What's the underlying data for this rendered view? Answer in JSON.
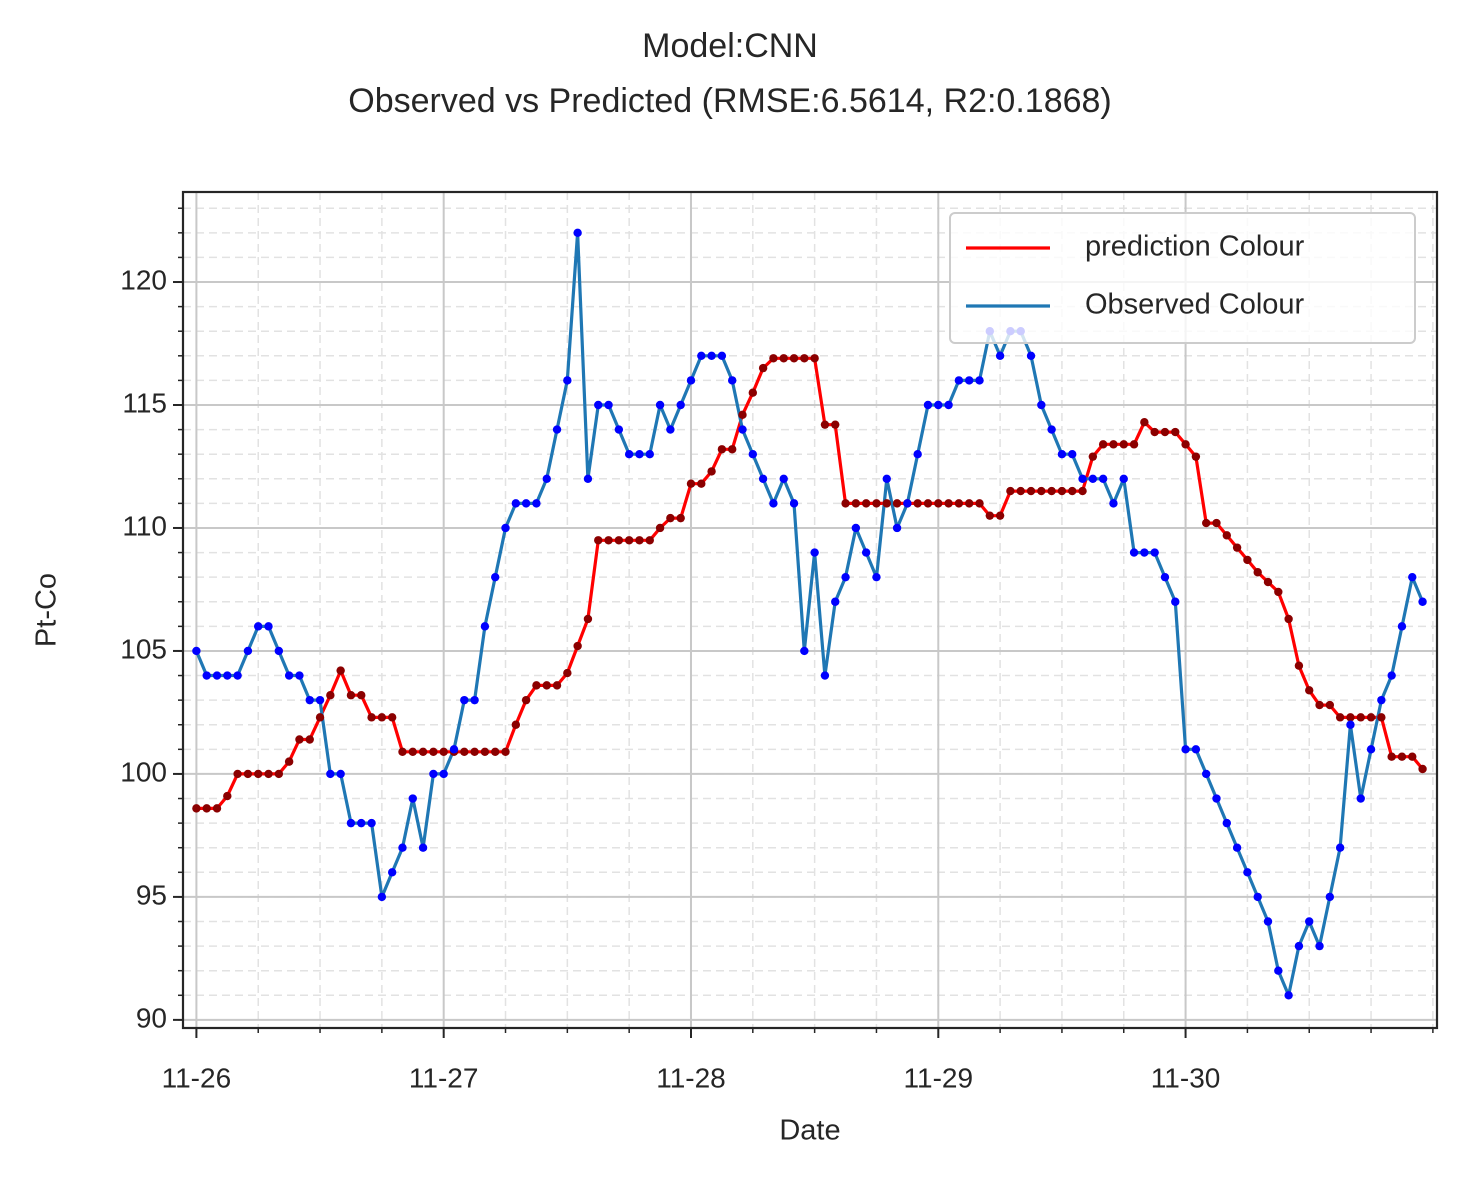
{
  "chart_data": {
    "type": "line",
    "title": "Model:CNN",
    "subtitle": "Observed vs Predicted (RMSE:6.5614, R2:0.1868)",
    "xlabel": "Date",
    "ylabel": "Pt-Co",
    "x": [
      0,
      1,
      2,
      3,
      4,
      5,
      6,
      7,
      8,
      9,
      10,
      11,
      12,
      13,
      14,
      15,
      16,
      17,
      18,
      19,
      20,
      21,
      22,
      23,
      24,
      25,
      26,
      27,
      28,
      29,
      30,
      31,
      32,
      33,
      34,
      35,
      36,
      37,
      38,
      39,
      40,
      41,
      42,
      43,
      44,
      45,
      46,
      47,
      48,
      49,
      50,
      51,
      52,
      53,
      54,
      55,
      56,
      57,
      58,
      59,
      60,
      61,
      62,
      63,
      64,
      65,
      66,
      67,
      68,
      69,
      70,
      71,
      72,
      73,
      74,
      75,
      76,
      77,
      78,
      79,
      80,
      81,
      82,
      83,
      84,
      85,
      86,
      87,
      88,
      89,
      90,
      91,
      92,
      93,
      94,
      95,
      96,
      97,
      98,
      99,
      100,
      101,
      102,
      103,
      104,
      105,
      106,
      107,
      108,
      109,
      110,
      111,
      112,
      113,
      114,
      115,
      116,
      117,
      118,
      119
    ],
    "series": [
      {
        "name": "prediction Colour",
        "color": "#ff0000",
        "marker_color": "#8b0000",
        "values": [
          98.6,
          98.6,
          98.6,
          99.1,
          100,
          100,
          100,
          100,
          100,
          100.5,
          101.4,
          101.4,
          102.3,
          103.2,
          104.2,
          103.2,
          103.2,
          102.3,
          102.3,
          102.3,
          100.9,
          100.9,
          100.9,
          100.9,
          100.9,
          100.9,
          100.9,
          100.9,
          100.9,
          100.9,
          100.9,
          102,
          103,
          103.6,
          103.6,
          103.6,
          104.1,
          105.2,
          106.3,
          109.5,
          109.5,
          109.5,
          109.5,
          109.5,
          109.5,
          110,
          110.4,
          110.4,
          111.8,
          111.8,
          112.3,
          113.2,
          113.2,
          114.6,
          115.5,
          116.5,
          116.9,
          116.9,
          116.9,
          116.9,
          116.9,
          114.2,
          114.2,
          111,
          111,
          111,
          111,
          111,
          111,
          111,
          111,
          111,
          111,
          111,
          111,
          111,
          111,
          110.5,
          110.5,
          111.5,
          111.5,
          111.5,
          111.5,
          111.5,
          111.5,
          111.5,
          111.5,
          112.9,
          113.4,
          113.4,
          113.4,
          113.4,
          114.3,
          113.9,
          113.9,
          113.9,
          113.4,
          112.9,
          110.2,
          110.2,
          109.7,
          109.2,
          108.7,
          108.2,
          107.8,
          107.4,
          106.3,
          104.4,
          103.4,
          102.8,
          102.8,
          102.3,
          102.3,
          102.3,
          102.3,
          102.3,
          100.7,
          100.7,
          100.7,
          100.2
        ]
      },
      {
        "name": "Observed Colour",
        "color": "#1f77b4",
        "marker_color": "#0000ff",
        "values": [
          105,
          104,
          104,
          104,
          104,
          105,
          106,
          106,
          105,
          104,
          104,
          103,
          103,
          100,
          100,
          98,
          98,
          98,
          95,
          96,
          97,
          99,
          97,
          100,
          100,
          101,
          103,
          103,
          106,
          108,
          110,
          111,
          111,
          111,
          112,
          114,
          116,
          122,
          112,
          115,
          115,
          114,
          113,
          113,
          113,
          115,
          114,
          115,
          116,
          117,
          117,
          117,
          116,
          114,
          113,
          112,
          111,
          112,
          111,
          105,
          109,
          104,
          107,
          108,
          110,
          109,
          108,
          112,
          110,
          111,
          113,
          115,
          115,
          115,
          116,
          116,
          116,
          118,
          117,
          118,
          118,
          117,
          115,
          114,
          113,
          113,
          112,
          112,
          112,
          111,
          112,
          109,
          109,
          109,
          108,
          107,
          101,
          101,
          100,
          99,
          98,
          97,
          96,
          95,
          94,
          92,
          91,
          93,
          94,
          93,
          95,
          97,
          102,
          99,
          101,
          103,
          104,
          106,
          108,
          107
        ]
      }
    ],
    "xlim": [
      -1.3,
      120.4
    ],
    "ylim": [
      89.67,
      123.66
    ],
    "xticks": [
      {
        "value": 0,
        "label": "11-26"
      },
      {
        "value": 24,
        "label": "11-27"
      },
      {
        "value": 48,
        "label": "11-28"
      },
      {
        "value": 72,
        "label": "11-29"
      },
      {
        "value": 96,
        "label": "11-30"
      }
    ],
    "yticks": [
      90,
      95,
      100,
      105,
      110,
      115,
      120
    ],
    "xminor_ticks": [
      0,
      6,
      12,
      18,
      24,
      30,
      36,
      42,
      48,
      54,
      60,
      66,
      72,
      78,
      84,
      90,
      96,
      102,
      108,
      114,
      120
    ],
    "yminor_ticks": [
      90,
      91,
      92,
      93,
      94,
      95,
      96,
      97,
      98,
      99,
      100,
      101,
      102,
      103,
      104,
      105,
      106,
      107,
      108,
      109,
      110,
      111,
      112,
      113,
      114,
      115,
      116,
      117,
      118,
      119,
      120,
      121,
      122,
      123
    ],
    "grid": true,
    "legend": "upper right"
  }
}
